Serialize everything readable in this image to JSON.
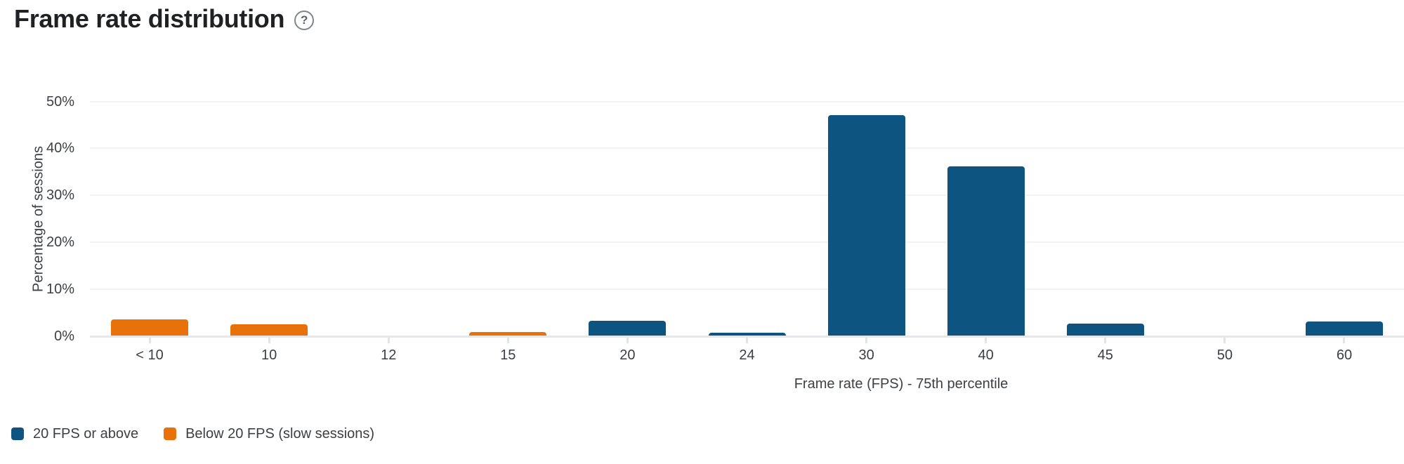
{
  "header": {
    "title": "Frame rate distribution",
    "help_icon": "help-circle-question",
    "help_glyph": "?"
  },
  "chart_data": {
    "type": "bar",
    "title": "Frame rate distribution",
    "categories": [
      "< 10",
      "10",
      "12",
      "15",
      "20",
      "24",
      "30",
      "40",
      "45",
      "50",
      "60"
    ],
    "series": [
      {
        "name": "20 FPS or above",
        "color": "#0d5480",
        "values": [
          0,
          0,
          0,
          0,
          3.1,
          0.6,
          47,
          36,
          2.6,
          0,
          3
        ]
      },
      {
        "name": "Below 20 FPS (slow sessions)",
        "color": "#e8710a",
        "values": [
          3.4,
          2.4,
          0,
          0.8,
          0,
          0,
          0,
          0,
          0,
          0,
          0
        ]
      }
    ],
    "xlabel": "Frame rate (FPS) - 75th percentile",
    "ylabel": "Percentage of sessions",
    "ylim": [
      0,
      50
    ],
    "yticks": [
      0,
      10,
      20,
      30,
      40,
      50
    ],
    "ytick_labels": [
      "0%",
      "10%",
      "20%",
      "30%",
      "40%",
      "50%"
    ],
    "grid": true,
    "legend_position": "bottom-left"
  },
  "legend": {
    "items": [
      {
        "label": "20 FPS or above",
        "color": "#0d5480"
      },
      {
        "label": "Below 20 FPS (slow sessions)",
        "color": "#e8710a"
      }
    ]
  },
  "colors": {
    "series_above": "#0d5480",
    "series_below": "#e8710a",
    "gridline": "#f1f3f4",
    "axis_line": "#e5e8ea",
    "tick_mark": "#e1e4e7",
    "title_text": "#202124",
    "label_text": "#3c4043",
    "help_icon": "#80868b"
  }
}
